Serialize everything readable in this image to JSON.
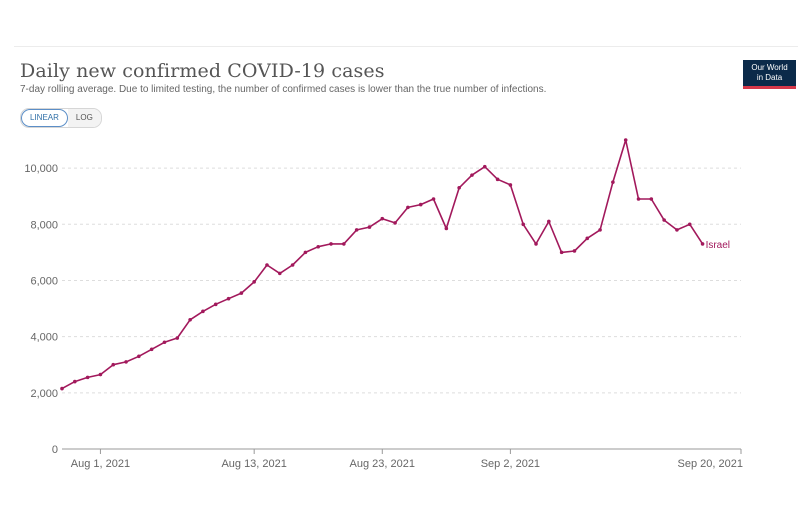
{
  "header": {
    "title": "Daily new confirmed COVID-19 cases",
    "subtitle": "7-day rolling average. Due to limited testing, the number of confirmed cases is lower than the true number of infections.",
    "logo_line1": "Our World",
    "logo_line2": "in Data"
  },
  "controls": {
    "linear_label": "LINEAR",
    "log_label": "LOG",
    "active_scale": "linear"
  },
  "colors": {
    "series": "#a2195c",
    "grid": "#dddddd",
    "axis": "#999999",
    "tick_text": "#666666"
  },
  "chart_data": {
    "type": "line",
    "title": "Daily new confirmed COVID-19 cases",
    "xlabel": "",
    "ylabel": "",
    "ylim": [
      0,
      11000
    ],
    "y_ticks": [
      0,
      2000,
      4000,
      6000,
      8000,
      10000
    ],
    "y_tick_labels": [
      "0",
      "2,000",
      "4,000",
      "6,000",
      "8,000",
      "10,000"
    ],
    "x_range": [
      "2021-07-29",
      "2021-09-20"
    ],
    "x_ticks": [
      "2021-08-01",
      "2021-08-13",
      "2021-08-23",
      "2021-09-02",
      "2021-09-20"
    ],
    "x_tick_labels": [
      "Aug 1, 2021",
      "Aug 13, 2021",
      "Aug 23, 2021",
      "Sep 2, 2021",
      "Sep 20, 2021"
    ],
    "series": [
      {
        "name": "Israel",
        "x": [
          "2021-07-29",
          "2021-07-30",
          "2021-07-31",
          "2021-08-01",
          "2021-08-02",
          "2021-08-03",
          "2021-08-04",
          "2021-08-05",
          "2021-08-06",
          "2021-08-07",
          "2021-08-08",
          "2021-08-09",
          "2021-08-10",
          "2021-08-11",
          "2021-08-12",
          "2021-08-13",
          "2021-08-14",
          "2021-08-15",
          "2021-08-16",
          "2021-08-17",
          "2021-08-18",
          "2021-08-19",
          "2021-08-20",
          "2021-08-21",
          "2021-08-22",
          "2021-08-23",
          "2021-08-24",
          "2021-08-25",
          "2021-08-26",
          "2021-08-27",
          "2021-08-28",
          "2021-08-29",
          "2021-08-30",
          "2021-08-31",
          "2021-09-01",
          "2021-09-02",
          "2021-09-03",
          "2021-09-04",
          "2021-09-05",
          "2021-09-06",
          "2021-09-07",
          "2021-09-08",
          "2021-09-09",
          "2021-09-10",
          "2021-09-11",
          "2021-09-12",
          "2021-09-13",
          "2021-09-14",
          "2021-09-15",
          "2021-09-16",
          "2021-09-17",
          "2021-09-18",
          "2021-09-19",
          "2021-09-20"
        ],
        "values": [
          2150,
          2400,
          2550,
          2650,
          3000,
          3100,
          3300,
          3550,
          3800,
          3950,
          4600,
          4900,
          5150,
          5350,
          5550,
          5950,
          6550,
          6250,
          6550,
          7000,
          7200,
          7300,
          7300,
          7800,
          7900,
          8200,
          8050,
          8600,
          8700,
          8900,
          7850,
          9300,
          9750,
          10050,
          9600,
          9400,
          8000,
          7300,
          8100,
          7000,
          7050,
          7500,
          7800,
          9500,
          11000,
          8900,
          8900,
          8150,
          7800,
          8000,
          7300,
          null,
          null,
          null
        ],
        "end_label": "Israel"
      }
    ],
    "grid": true,
    "legend": "end-of-line label"
  }
}
